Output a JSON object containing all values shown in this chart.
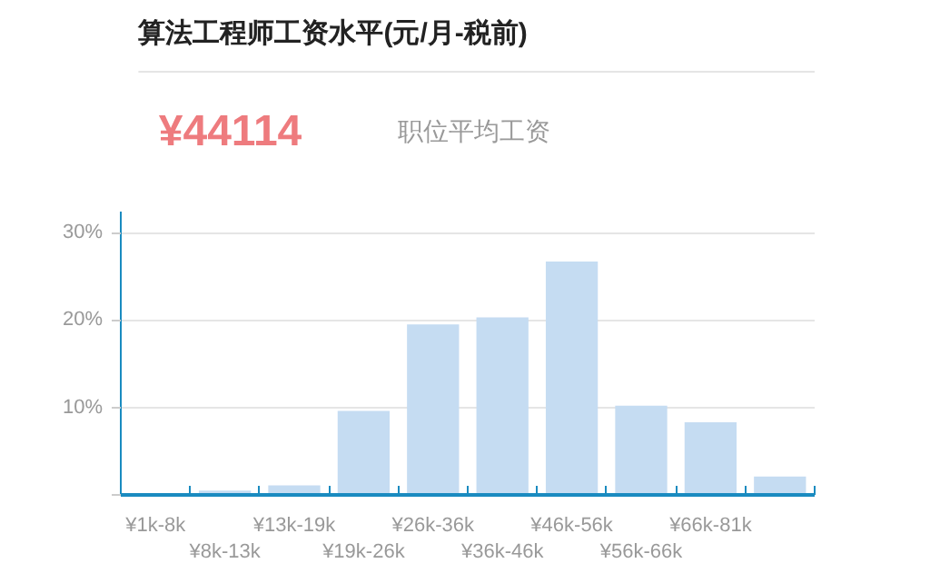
{
  "chart_data": {
    "type": "bar",
    "title": "算法工程师工资水平(元/月-税前)",
    "annotations": [
      "¥44114"
    ],
    "categories": [
      "¥1k-8k",
      "¥8k-13k",
      "¥13k-19k",
      "¥19k-26k",
      "¥26k-36k",
      "¥36k-46k",
      "¥46k-56k",
      "¥56k-66k",
      "¥66k-81k",
      null
    ],
    "series": [
      {
        "name": "职位平均工资",
        "color": "#c5dcf2",
        "values": [
          0,
          0.5,
          1.1,
          9.6,
          19.5,
          20.3,
          26.7,
          10.2,
          8.3,
          2.1
        ]
      }
    ],
    "ylim": [
      0,
      32.4
    ],
    "yticks": [
      {
        "value": 0,
        "label": null
      },
      {
        "value": 10,
        "label": "10%"
      },
      {
        "value": 20,
        "label": "20%"
      },
      {
        "value": 30,
        "label": "30%"
      }
    ],
    "grid": "y",
    "legend": "top left"
  }
}
